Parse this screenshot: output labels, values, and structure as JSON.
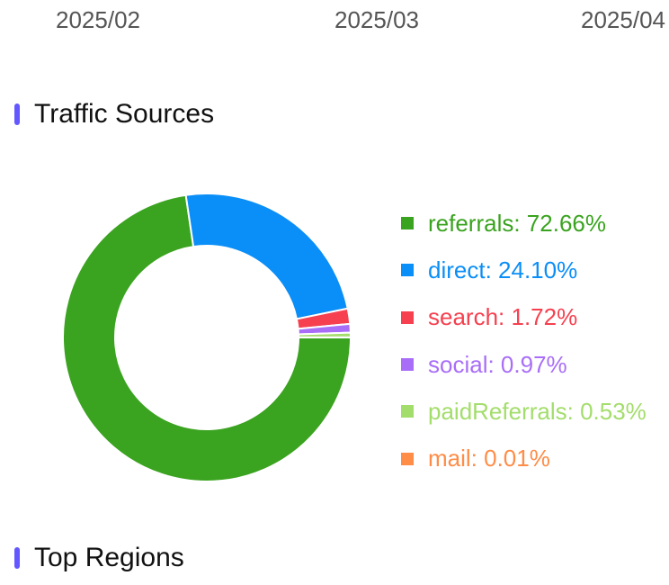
{
  "timeline_axis": {
    "ticks": [
      "2025/02",
      "2025/03",
      "2025/04"
    ]
  },
  "colors": {
    "section_bar": "#6358ff"
  },
  "traffic_sources": {
    "title": "Traffic Sources"
  },
  "top_regions": {
    "title": "Top Regions"
  },
  "chart_data": {
    "type": "pie",
    "variant": "donut",
    "title": "Traffic Sources",
    "start_angle_deg": 0,
    "direction": "clockwise",
    "legend_position": "right",
    "series": [
      {
        "name": "referrals",
        "value": 72.66,
        "label": "referrals: 72.66%",
        "color": "#3aa31f"
      },
      {
        "name": "direct",
        "value": 24.1,
        "label": "direct: 24.10%",
        "color": "#0a8ef7"
      },
      {
        "name": "search",
        "value": 1.72,
        "label": "search: 1.72%",
        "color": "#f6404f"
      },
      {
        "name": "social",
        "value": 0.97,
        "label": "social: 0.97%",
        "color": "#a86ef7"
      },
      {
        "name": "paidReferrals",
        "value": 0.53,
        "label": "paidReferrals: 0.53%",
        "color": "#a3dd6b"
      },
      {
        "name": "mail",
        "value": 0.01,
        "label": "mail: 0.01%",
        "color": "#ff8c47"
      }
    ]
  }
}
